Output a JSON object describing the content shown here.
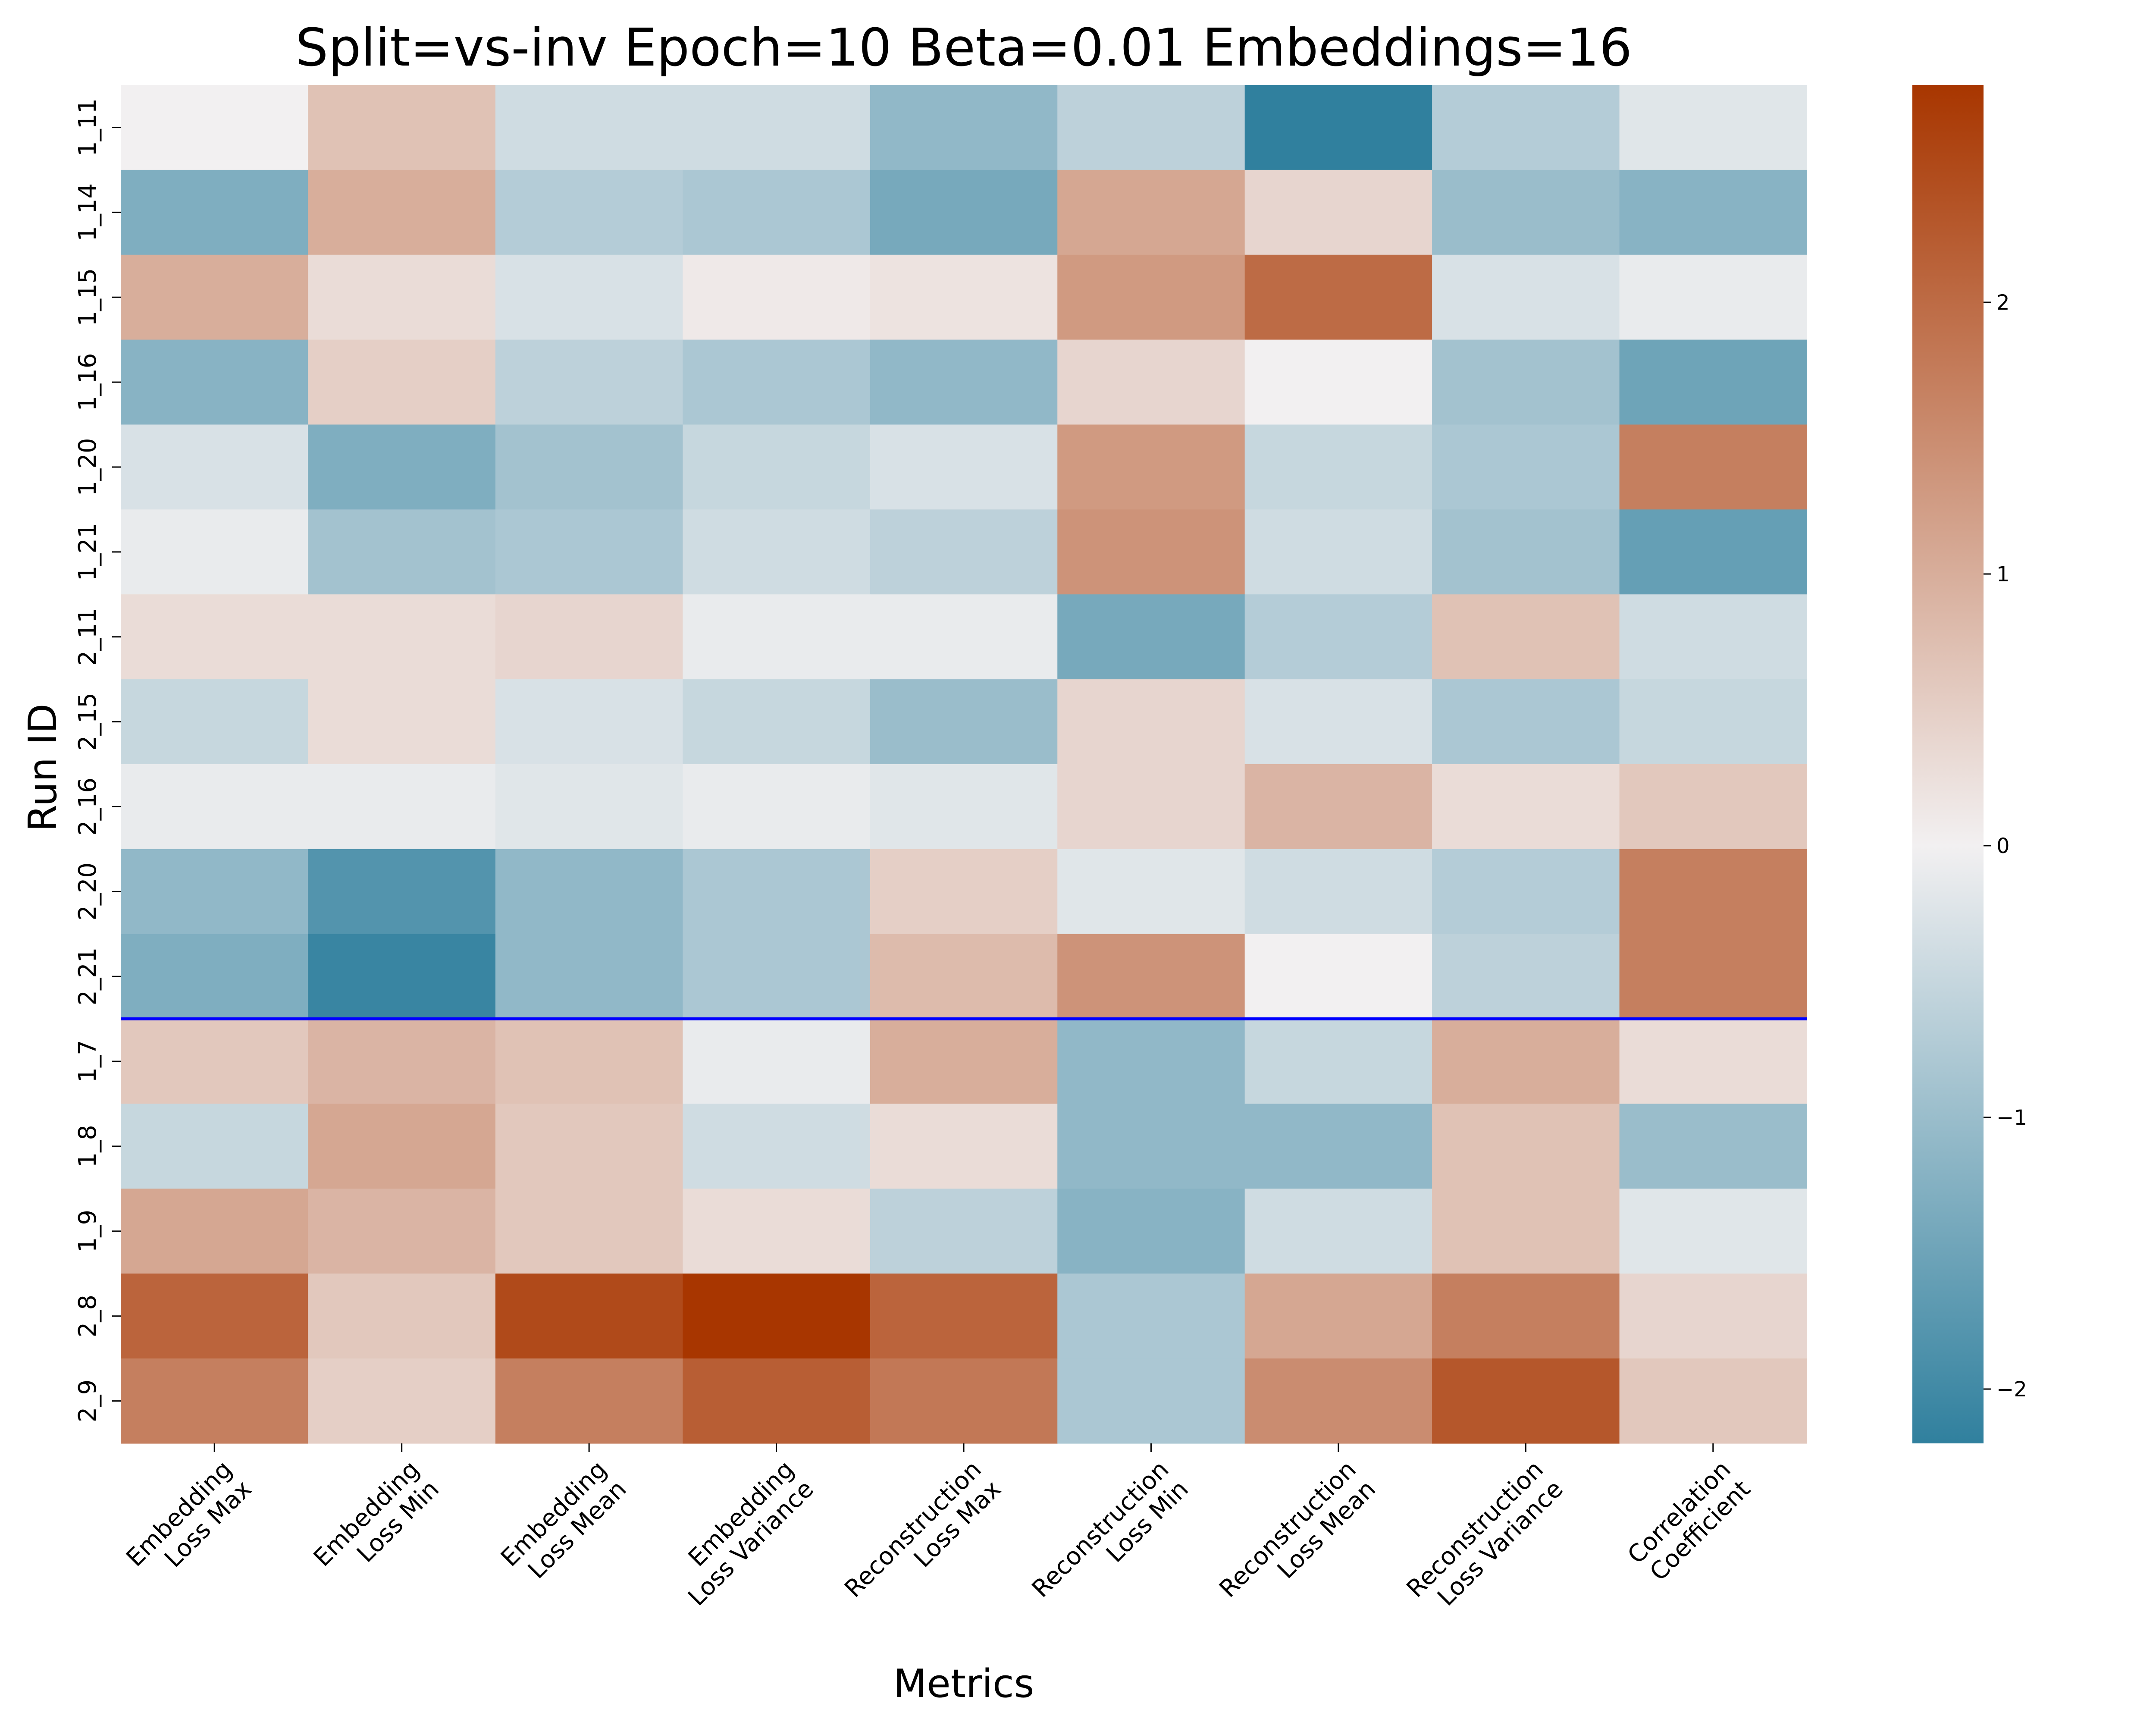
{
  "chart_data": {
    "type": "heatmap",
    "title": "Split=vs-inv Epoch=10 Beta=0.01 Embeddings=16",
    "xlabel": "Metrics",
    "ylabel": "Run ID",
    "x_categories": [
      [
        "Embedding",
        "Loss Max"
      ],
      [
        "Embedding",
        "Loss Min"
      ],
      [
        "Embedding",
        "Loss Mean"
      ],
      [
        "Embedding",
        "Loss Variance"
      ],
      [
        "Reconstruction",
        "Loss Max"
      ],
      [
        "Reconstruction",
        "Loss Min"
      ],
      [
        "Reconstruction",
        "Loss Mean"
      ],
      [
        "Reconstruction",
        "Loss Variance"
      ],
      [
        "Correlation",
        "Coefficient"
      ]
    ],
    "y_categories": [
      "1_11",
      "1_14",
      "1_15",
      "1_16",
      "1_20",
      "1_21",
      "2_11",
      "2_15",
      "2_16",
      "2_20",
      "2_21",
      "1_7",
      "1_8",
      "1_9",
      "2_8",
      "2_9"
    ],
    "values": [
      [
        0.0,
        0.7,
        -0.4,
        -0.4,
        -1.1,
        -0.6,
        -2.2,
        -0.7,
        -0.2
      ],
      [
        -1.3,
        1.0,
        -0.7,
        -0.8,
        -1.4,
        1.1,
        0.4,
        -1.0,
        -1.2
      ],
      [
        1.0,
        0.3,
        -0.3,
        0.1,
        0.2,
        1.3,
        2.0,
        -0.3,
        -0.1
      ],
      [
        -1.2,
        0.5,
        -0.6,
        -0.8,
        -1.1,
        0.4,
        0.0,
        -0.9,
        -1.5
      ],
      [
        -0.3,
        -1.3,
        -0.9,
        -0.5,
        -0.3,
        1.3,
        -0.5,
        -0.8,
        1.7
      ],
      [
        -0.1,
        -0.9,
        -0.8,
        -0.4,
        -0.6,
        1.4,
        -0.4,
        -0.9,
        -1.6
      ],
      [
        0.3,
        0.3,
        0.4,
        -0.1,
        -0.1,
        -1.4,
        -0.7,
        0.7,
        -0.4
      ],
      [
        -0.5,
        0.3,
        -0.3,
        -0.5,
        -1.0,
        0.4,
        -0.3,
        -0.8,
        -0.5
      ],
      [
        -0.1,
        -0.1,
        -0.2,
        -0.1,
        -0.2,
        0.4,
        0.9,
        0.3,
        0.6
      ],
      [
        -1.1,
        -1.8,
        -1.1,
        -0.8,
        0.5,
        -0.2,
        -0.4,
        -0.7,
        1.7
      ],
      [
        -1.3,
        -2.1,
        -1.1,
        -0.8,
        0.8,
        1.4,
        0.0,
        -0.6,
        1.7
      ],
      [
        0.6,
        0.9,
        0.7,
        -0.1,
        1.0,
        -1.1,
        -0.5,
        1.0,
        0.3
      ],
      [
        -0.5,
        1.1,
        0.6,
        -0.4,
        0.3,
        -1.1,
        -1.1,
        0.7,
        -1.0
      ],
      [
        1.1,
        0.9,
        0.6,
        0.3,
        -0.6,
        -1.2,
        -0.4,
        0.7,
        -0.2
      ],
      [
        2.1,
        0.6,
        2.5,
        2.8,
        2.1,
        -0.8,
        1.1,
        1.7,
        0.4
      ],
      [
        1.7,
        0.5,
        1.7,
        2.2,
        1.8,
        -0.8,
        1.5,
        2.3,
        0.6
      ]
    ],
    "separator_after_row": 11,
    "separator_color": "#0000ff",
    "vmin": -2.2,
    "vmax": 2.8,
    "colorbar_ticks": [
      -2,
      -1,
      0,
      1,
      2
    ],
    "colorbar_tick_labels": [
      "−2",
      "−1",
      "0",
      "1",
      "2"
    ],
    "colormap": {
      "negative_end": "#30809e",
      "center": "#f2f0f1",
      "positive_end": "#a83600"
    }
  }
}
